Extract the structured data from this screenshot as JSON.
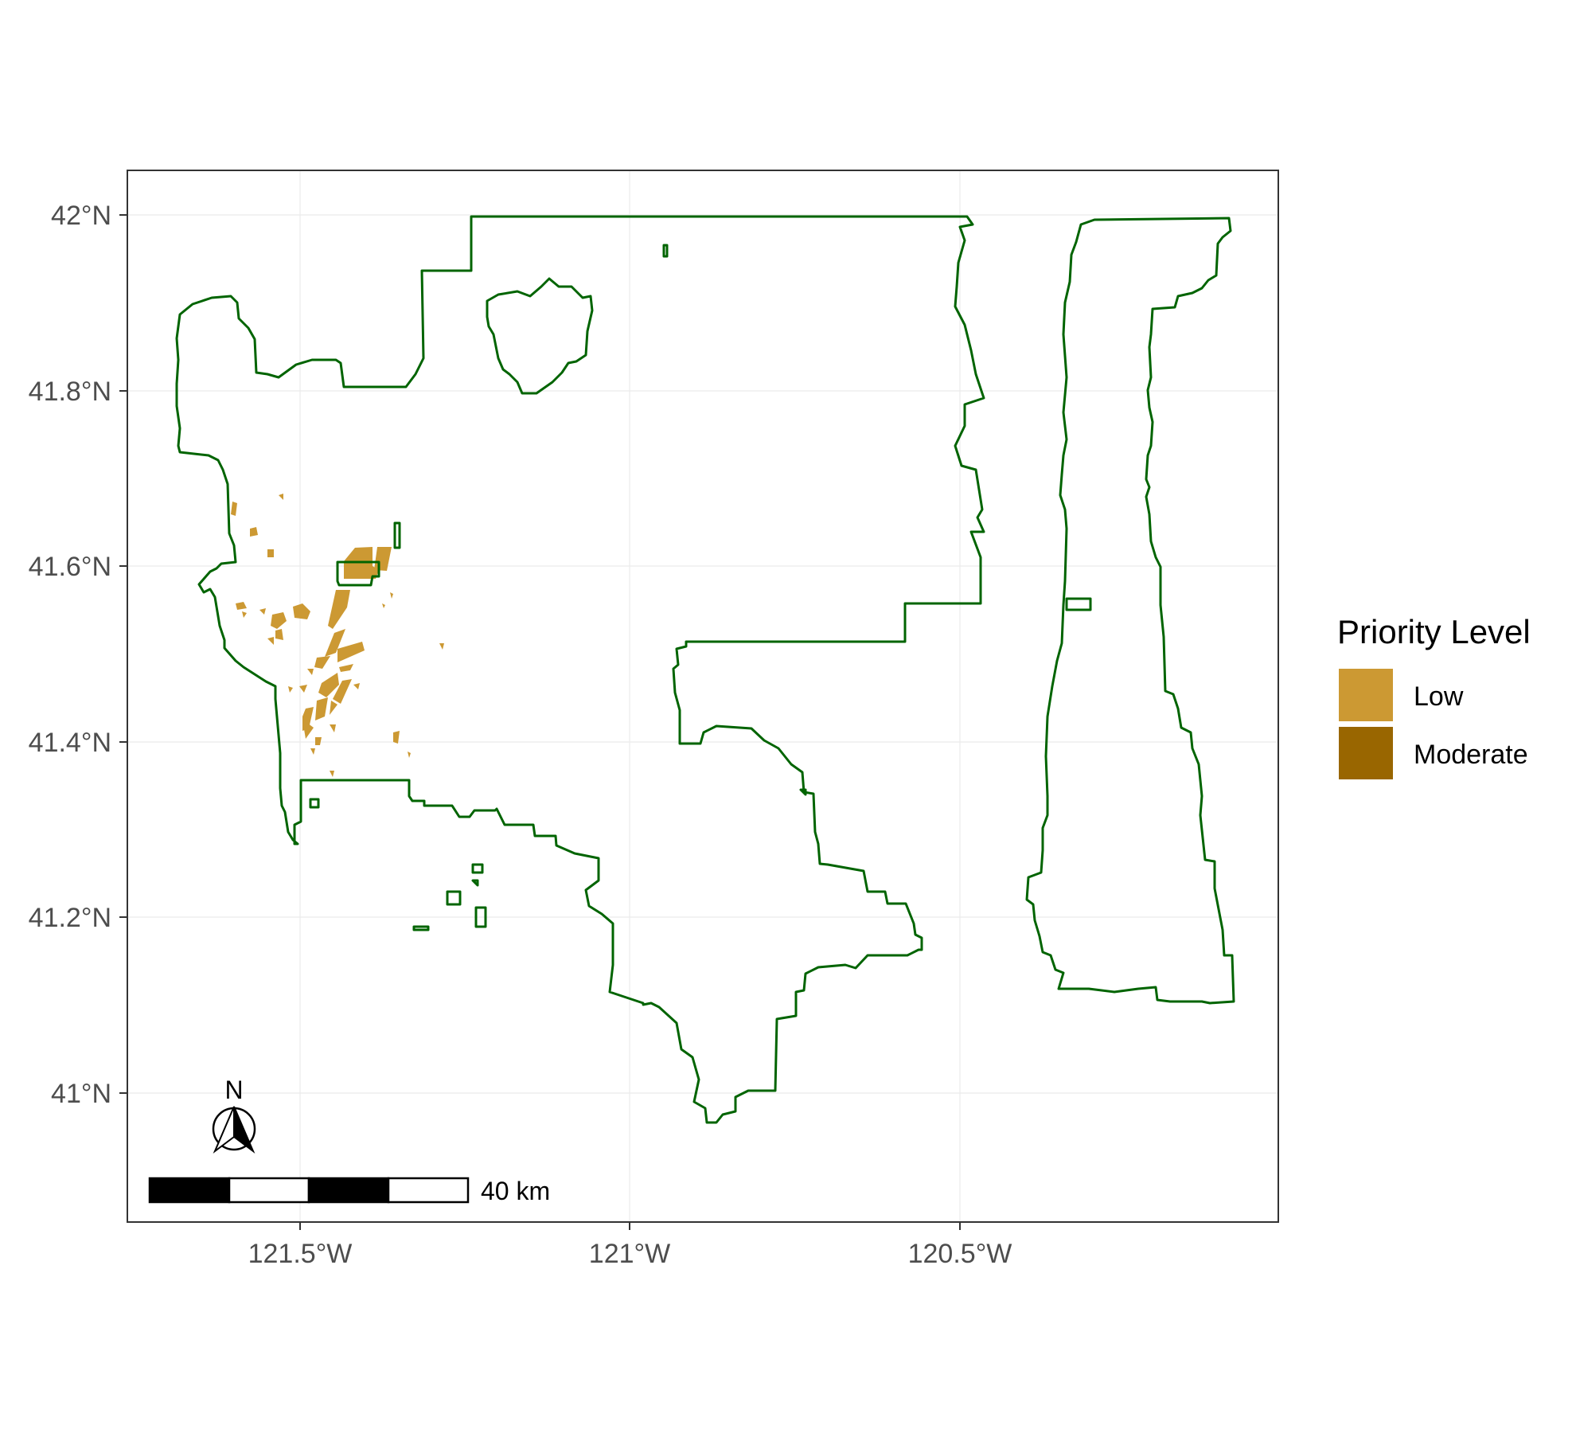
{
  "axes": {
    "x_ticks": [
      "121.5°W",
      "121°W",
      "120.5°W"
    ],
    "y_ticks": [
      "42°N",
      "41.8°N",
      "41.6°N",
      "41.4°N",
      "41.2°N",
      "41°N"
    ]
  },
  "legend": {
    "title": "Priority Level",
    "items": [
      {
        "label": "Low",
        "color": "#CC9933"
      },
      {
        "label": "Moderate",
        "color": "#996600"
      }
    ]
  },
  "scale_bar": {
    "label": "40 km"
  },
  "north_arrow": {
    "label": "N"
  },
  "colors": {
    "boundary": "#006400",
    "grid": "#ebebeb",
    "panel_border": "#333333"
  }
}
